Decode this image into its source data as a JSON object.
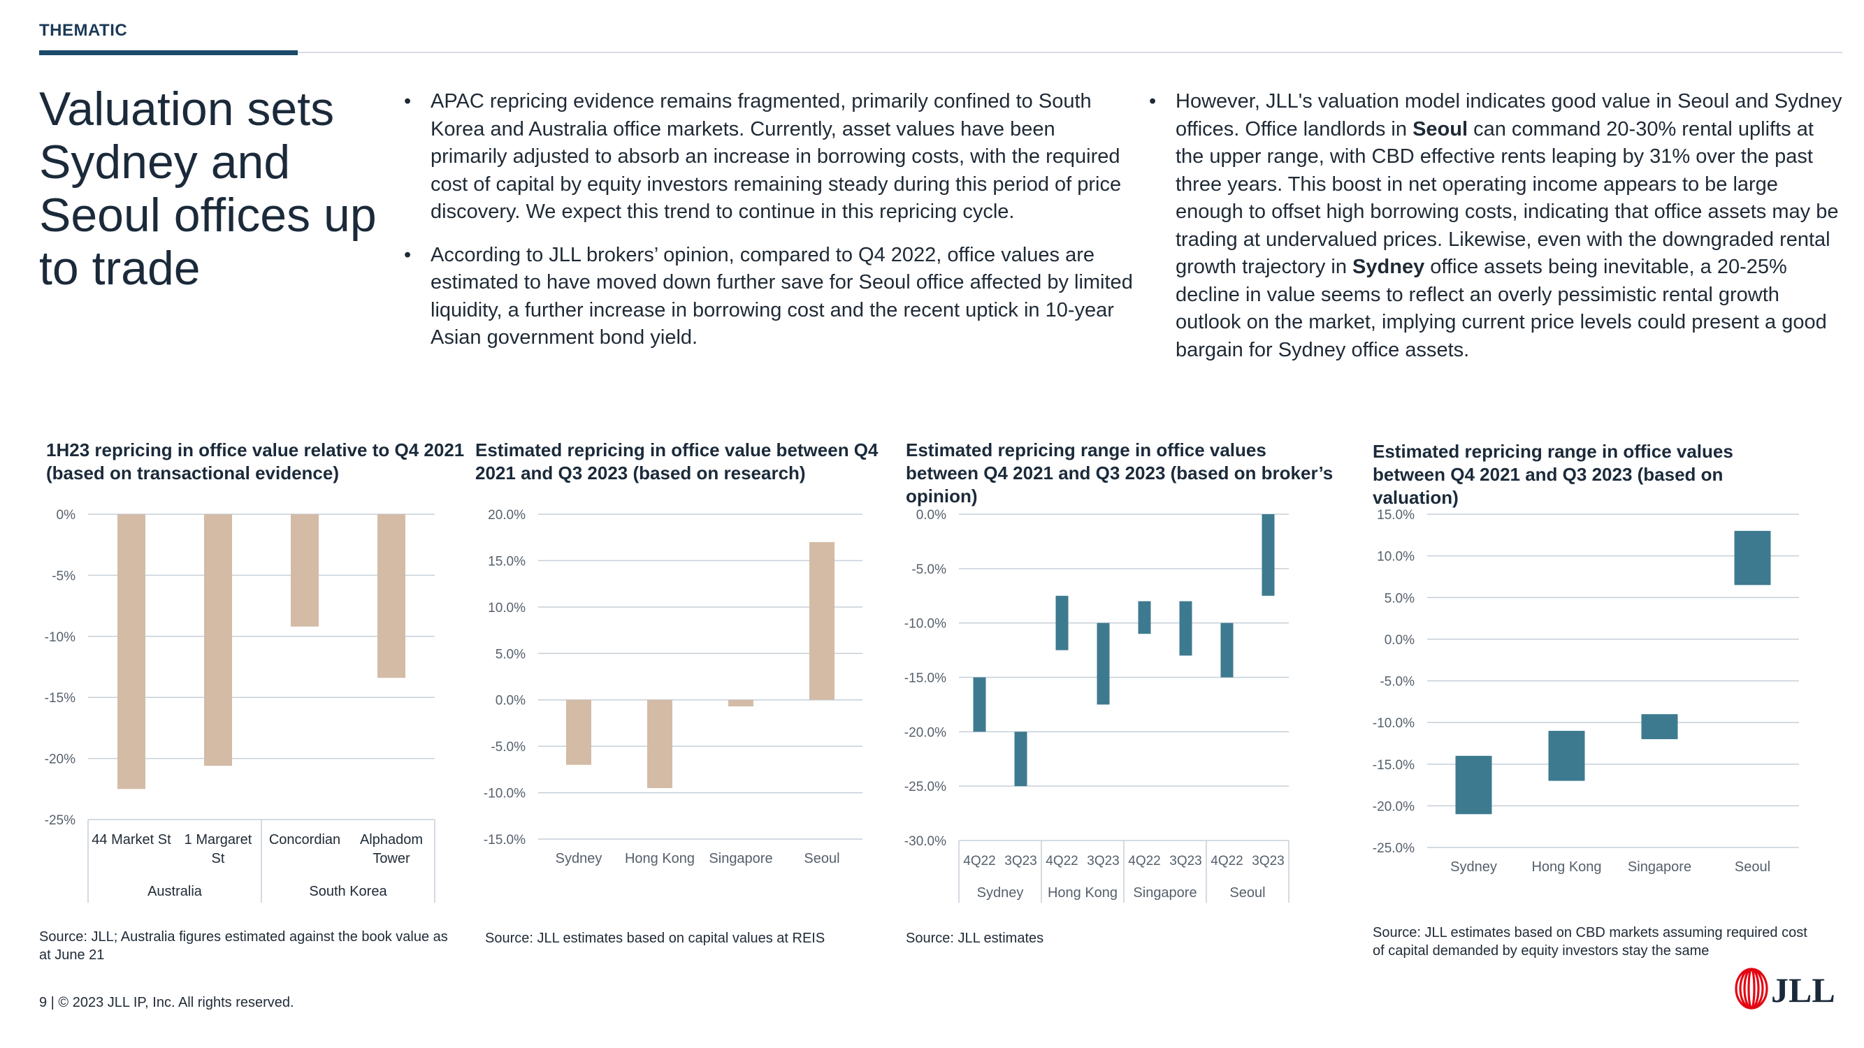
{
  "header": {
    "section_label": "THEMATIC"
  },
  "main_title": "Valuation sets Sydney and Seoul offices up to trade",
  "bullets_left": [
    {
      "text": "APAC repricing evidence remains fragmented, primarily confined to South Korea and Australia office markets. Currently, asset values have been primarily adjusted to absorb an increase in borrowing costs, with the required cost of capital by equity investors remaining steady during this period of price discovery. We expect this trend to continue in this repricing cycle."
    },
    {
      "text": "According to JLL brokers’ opinion, compared to Q4 2022, office values are estimated to have moved down further save for Seoul office affected by limited liquidity, a further increase in borrowing cost and the recent uptick in 10-year Asian government bond yield."
    }
  ],
  "bullets_right": [
    {
      "p1": "However, JLL's valuation model indicates good value in Seoul and Sydney offices. Office landlords in ",
      "b1": "Seoul",
      "p2": " can command 20-30% rental uplifts at the upper range, with CBD effective rents leaping by 31% over the past three years. This boost in net operating income appears to be large enough to offset high borrowing costs, indicating that office assets may be trading at undervalued prices. Likewise, even with the downgraded rental growth trajectory in ",
      "b2": "Sydney",
      "p3": " office assets being inevitable, a 20-25% decline in value seems to reflect an overly pessimistic rental growth outlook on the market, implying current price levels could present a good bargain for Sydney office assets."
    }
  ],
  "colors": {
    "tan": "#d3bba6",
    "teal": "#3d7a8f",
    "grid": "#c6cfd8",
    "axis_text": "#555f6b",
    "navy": "#1b4a6b",
    "jll_red": "#e30613"
  },
  "chart_data": [
    {
      "type": "bar",
      "title": "1H23 repricing in office value relative to Q4 2021 (based on transactional evidence)",
      "categories": [
        "44 Market St",
        "1 Margaret St",
        "Concordian",
        "Alphadom Tower"
      ],
      "category_lines": [
        [
          "44 Market St"
        ],
        [
          "1 Margaret",
          "St"
        ],
        [
          "Concordian"
        ],
        [
          "Alphadom",
          "Tower"
        ]
      ],
      "groups": [
        {
          "name": "Australia",
          "span": 2
        },
        {
          "name": "South Korea",
          "span": 2
        }
      ],
      "values": [
        -22.5,
        -20.6,
        -9.2,
        -13.4
      ],
      "ylim": [
        -25,
        0
      ],
      "yticks": [
        0,
        -5,
        -10,
        -15,
        -20,
        -25
      ],
      "ytick_labels": [
        "0%",
        "-5%",
        "-10%",
        "-15%",
        "-20%",
        "-25%"
      ],
      "source": "Source: JLL; Australia figures estimated  against the book value as at June 21"
    },
    {
      "type": "bar",
      "title": "Estimated repricing in office value between Q4 2021 and Q3 2023 (based on research)",
      "categories": [
        "Sydney",
        "Hong Kong",
        "Singapore",
        "Seoul"
      ],
      "values": [
        -7.0,
        -9.5,
        -0.7,
        17.0
      ],
      "ylim": [
        -15,
        20
      ],
      "yticks": [
        20,
        15,
        10,
        5,
        0,
        -5,
        -10,
        -15
      ],
      "ytick_labels": [
        "20.0%",
        "15.0%",
        "10.0%",
        "5.0%",
        "0.0%",
        "-5.0%",
        "-10.0%",
        "-15.0%"
      ],
      "source": "Source: JLL estimates based on capital values at REIS"
    },
    {
      "type": "bar",
      "title": "Estimated repricing range in office values between Q4 2021 and Q3 2023 (based on broker’s opinion)",
      "categories": [
        "4Q22",
        "3Q23",
        "4Q22",
        "3Q23",
        "4Q22",
        "3Q23",
        "4Q22",
        "3Q23"
      ],
      "groups": [
        {
          "name": "Sydney",
          "span": 2
        },
        {
          "name": "Hong Kong",
          "span": 2
        },
        {
          "name": "Singapore",
          "span": 2
        },
        {
          "name": "Seoul",
          "span": 2
        }
      ],
      "ranges": [
        [
          -15,
          -20
        ],
        [
          -20,
          -25
        ],
        [
          -7.5,
          -12.5
        ],
        [
          -10,
          -17.5
        ],
        [
          -8,
          -11
        ],
        [
          -8,
          -13
        ],
        [
          -10,
          -15
        ],
        [
          0,
          -7.5
        ]
      ],
      "ylim": [
        -30,
        0
      ],
      "yticks": [
        0,
        -5,
        -10,
        -15,
        -20,
        -25,
        -30
      ],
      "ytick_labels": [
        "0.0%",
        "-5.0%",
        "-10.0%",
        "-15.0%",
        "-20.0%",
        "-25.0%",
        "-30.0%"
      ],
      "source": "Source: JLL estimates"
    },
    {
      "type": "bar",
      "title": "Estimated repricing range in office values between Q4 2021 and Q3 2023 (based on valuation)",
      "categories": [
        "Sydney",
        "Hong Kong",
        "Singapore",
        "Seoul"
      ],
      "ranges": [
        [
          -14,
          -21
        ],
        [
          -11,
          -17
        ],
        [
          -9,
          -12
        ],
        [
          13,
          6.5
        ]
      ],
      "ylim": [
        -25,
        15
      ],
      "yticks": [
        15,
        10,
        5,
        0,
        -5,
        -10,
        -15,
        -20,
        -25
      ],
      "ytick_labels": [
        "15.0%",
        "10.0%",
        "5.0%",
        "0.0%",
        "-5.0%",
        "-10.0%",
        "-15.0%",
        "-20.0%",
        "-25.0%"
      ],
      "source": "Source: JLL estimates based on CBD markets assuming required cost of capital demanded by equity investors stay the same"
    }
  ],
  "footer": {
    "text": "9  |  © 2023  JLL IP, Inc. All rights reserved."
  },
  "logo": {
    "text": "JLL",
    "icon": "jll-logo-icon"
  }
}
